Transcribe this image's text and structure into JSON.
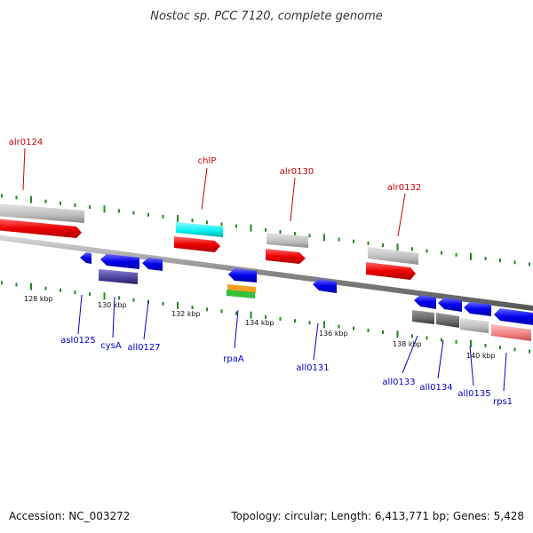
{
  "title": "Nostoc sp. PCC 7120, complete genome",
  "footer": {
    "accession": "Accession: NC_003272",
    "stats": "Topology: circular; Length: 6,413,771 bp; Genes: 5,428"
  },
  "scale_labels": [
    "128 kbp",
    "130 kbp",
    "132 kbp",
    "134 kbp",
    "136 kbp",
    "138 kbp",
    "140 kbp"
  ],
  "genes_forward": [
    "alr0124",
    "chlP",
    "alr0130",
    "alr0132"
  ],
  "genes_reverse": [
    "asl0125",
    "cysA",
    "all0127",
    "rpaA",
    "all0131",
    "all0133",
    "all0134",
    "all0135",
    "rps1"
  ],
  "colors": {
    "forward_gene": "#ee1111",
    "reverse_gene": "#1111ee",
    "forward_label": "#cc0000",
    "reverse_label": "#0000cc",
    "tick": "#228822",
    "backbone": "#888888"
  }
}
